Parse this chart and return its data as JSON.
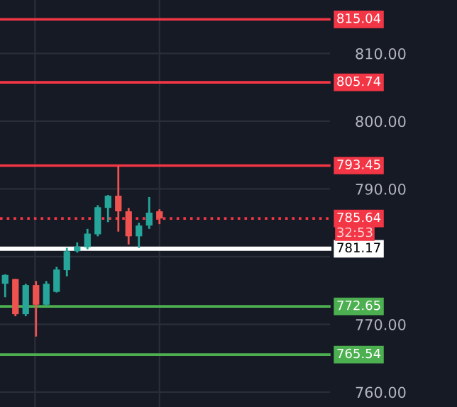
{
  "chart_data": {
    "type": "candlestick",
    "categories": [
      null,
      null,
      null,
      null,
      null,
      null,
      null,
      null,
      null,
      null,
      null,
      null,
      null,
      null,
      null,
      null,
      null,
      null,
      null,
      null,
      null,
      null,
      null,
      null,
      null,
      null,
      null,
      null,
      null,
      null,
      null,
      null
    ],
    "ohlc": [
      [
        776.0,
        777.4,
        774.0,
        777.3
      ],
      [
        776.7,
        776.7,
        771.2,
        771.5
      ],
      [
        771.5,
        776.0,
        771.2,
        775.8
      ],
      [
        775.8,
        776.4,
        768.2,
        772.9
      ],
      [
        772.9,
        776.4,
        772.7,
        776.0
      ],
      [
        774.8,
        778.5,
        774.7,
        778.1
      ],
      [
        778.0,
        781.3,
        777.1,
        780.8
      ],
      [
        780.8,
        782.1,
        780.6,
        781.5
      ],
      [
        781.4,
        784.1,
        781.1,
        783.4
      ],
      [
        783.3,
        787.6,
        783.0,
        787.3
      ],
      [
        787.2,
        789.1,
        785.1,
        789.0
      ],
      [
        789.0,
        793.45,
        783.7,
        786.7
      ],
      [
        786.7,
        787.2,
        781.8,
        783.0
      ],
      [
        783.0,
        785.0,
        781.3,
        784.6
      ],
      [
        784.6,
        788.8,
        784.1,
        786.5
      ],
      [
        786.7,
        787.0,
        784.8,
        785.64
      ],
      null,
      null,
      null,
      null,
      null,
      null,
      null,
      null,
      null,
      null,
      null,
      null,
      null,
      null,
      null,
      null
    ],
    "colors": [
      "#26a69a",
      "#ef5350",
      "#26a69a",
      "#ef5350",
      "#26a69a",
      "#26a69a",
      "#26a69a",
      "#26a69a",
      "#26a69a",
      "#26a69a",
      "#26a69a",
      "#ef5350",
      "#ef5350",
      "#26a69a",
      "#26a69a",
      "#ef5350",
      null,
      null,
      null,
      null,
      null,
      null,
      null,
      null,
      null,
      null,
      null,
      null,
      null,
      null,
      null,
      null
    ],
    "ylim": [
      757.8,
      817.9
    ],
    "yticks": [
      {
        "value": 760,
        "label": "760.00"
      },
      {
        "value": 770,
        "label": "770.00"
      },
      {
        "value": 780,
        "label": null
      },
      {
        "value": 790,
        "label": "790.00"
      },
      {
        "value": 800,
        "label": "800.00"
      },
      {
        "value": 810,
        "label": "810.00"
      }
    ],
    "tick_labels": "y",
    "grid": true,
    "ref_lines": [
      {
        "axis": "y",
        "value": 815.04,
        "label": "815.04",
        "color": "#f23645",
        "line_style": "solid"
      },
      {
        "axis": "y",
        "value": 805.74,
        "label": "805.74",
        "color": "#f23645",
        "line_style": "solid"
      },
      {
        "axis": "y",
        "value": 793.45,
        "label": "793.45",
        "color": "#f23645",
        "line_style": "solid"
      },
      {
        "axis": "y",
        "value": 785.64,
        "label": "785.64",
        "color": "#f23645",
        "line_style": "dotted"
      },
      {
        "axis": "y",
        "value": 781.17,
        "label": "781.17",
        "color": "#ffffff",
        "line_style": "solid"
      },
      {
        "axis": "y",
        "value": 772.65,
        "label": "772.65",
        "color": "#4caf50",
        "line_style": "solid"
      },
      {
        "axis": "y",
        "value": 765.54,
        "label": "765.54",
        "color": "#4caf50",
        "line_style": "solid"
      }
    ],
    "annotations": [
      "32:53"
    ]
  }
}
